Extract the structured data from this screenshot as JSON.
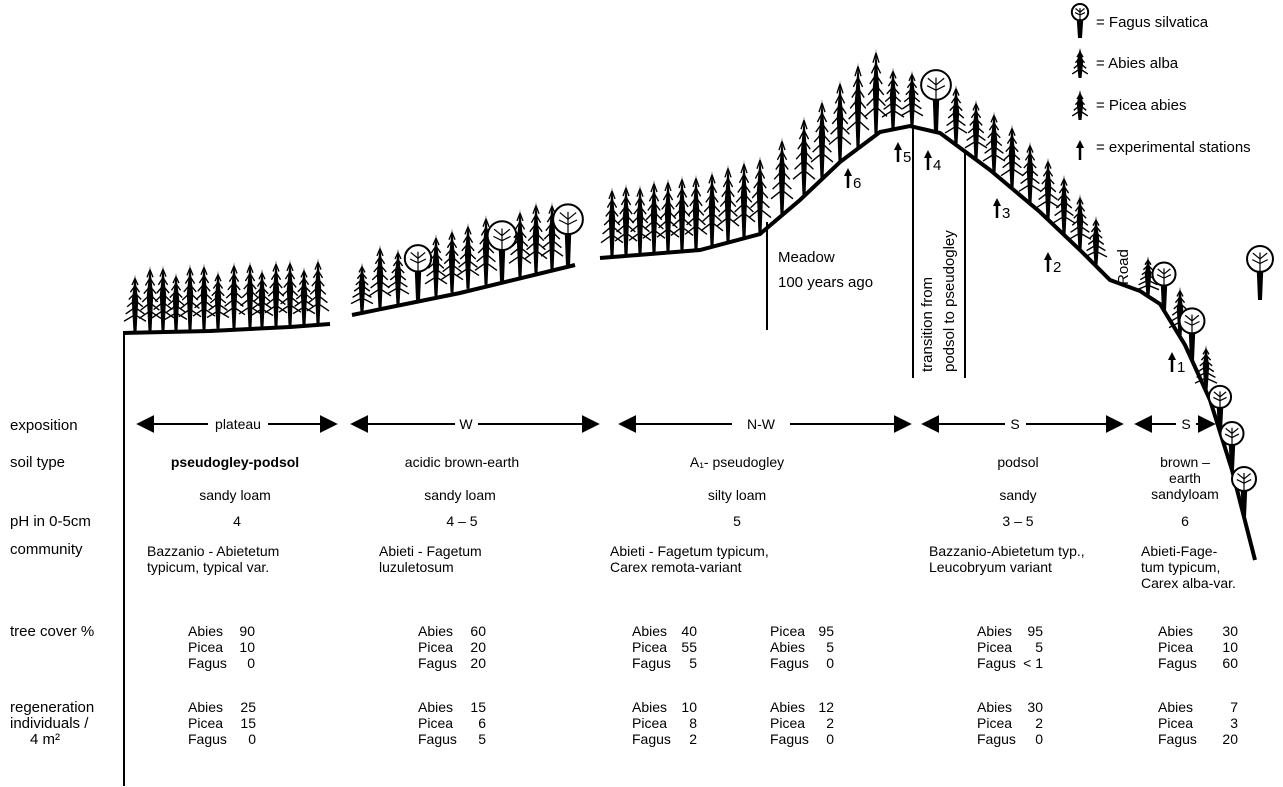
{
  "legend": {
    "fagus": "= Fagus silvatica",
    "abies": "= Abies alba",
    "picea": "= Picea abies",
    "station": "= experimental stations"
  },
  "annotations": {
    "meadow_1": "Meadow",
    "meadow_2": "100 years ago",
    "transition_1": "transition from",
    "transition_2": "podsol to pseudogley",
    "road": "Road"
  },
  "stations": [
    "1",
    "2",
    "3",
    "4",
    "5",
    "6"
  ],
  "row_labels": {
    "exposition": "exposition",
    "soil_type": "soil type",
    "ph": "pH in 0-5cm",
    "community": "community",
    "tree_cover": "tree cover %",
    "regen_1": "regeneration",
    "regen_2": "individuals /",
    "regen_3": "4 m²"
  },
  "sections": [
    {
      "exposition": "plateau",
      "soil_type": "pseudogley-podsol",
      "texture": "sandy loam",
      "ph": "4",
      "community": [
        "Bazzanio - Abietetum",
        "typicum, typical var."
      ],
      "cover": [
        [
          "Abies",
          "90"
        ],
        [
          "Picea",
          "10"
        ],
        [
          "Fagus",
          "0"
        ]
      ],
      "regen": [
        [
          "Abies",
          "25"
        ],
        [
          "Picea",
          "15"
        ],
        [
          "Fagus",
          "0"
        ]
      ]
    },
    {
      "exposition": "W",
      "soil_type": "acidic brown-earth",
      "texture": "sandy loam",
      "ph": "4 – 5",
      "community": [
        "Abieti - Fagetum",
        "luzuletosum"
      ],
      "cover": [
        [
          "Abies",
          "60"
        ],
        [
          "Picea",
          "20"
        ],
        [
          "Fagus",
          "20"
        ]
      ],
      "regen": [
        [
          "Abies",
          "15"
        ],
        [
          "Picea",
          "6"
        ],
        [
          "Fagus",
          "5"
        ]
      ]
    },
    {
      "exposition": "N-W",
      "soil_type": "A₁- pseudogley",
      "texture": "silty loam",
      "ph": "5",
      "community": [
        "Abieti - Fagetum typicum,",
        "Carex remota-variant"
      ],
      "cover": [
        [
          "Abies",
          "40"
        ],
        [
          "Picea",
          "55"
        ],
        [
          "Fagus",
          "5"
        ]
      ],
      "cover_b": [
        [
          "Picea",
          "95"
        ],
        [
          "Abies",
          "5"
        ],
        [
          "Fagus",
          "0"
        ]
      ],
      "regen": [
        [
          "Abies",
          "10"
        ],
        [
          "Picea",
          "8"
        ],
        [
          "Fagus",
          "2"
        ]
      ],
      "regen_b": [
        [
          "Abies",
          "12"
        ],
        [
          "Picea",
          "2"
        ],
        [
          "Fagus",
          "0"
        ]
      ]
    },
    {
      "exposition": "S",
      "soil_type": "podsol",
      "texture": "sandy",
      "ph": "3 – 5",
      "community": [
        "Bazzanio-Abietetum typ.,",
        "Leucobryum variant"
      ],
      "cover": [
        [
          "Abies",
          "95"
        ],
        [
          "Picea",
          "5"
        ],
        [
          "Fagus",
          "< 1"
        ]
      ],
      "regen": [
        [
          "Abies",
          "30"
        ],
        [
          "Picea",
          "2"
        ],
        [
          "Fagus",
          "0"
        ]
      ]
    },
    {
      "exposition": "S",
      "soil_type": [
        "brown –",
        "earth",
        "sandyloam"
      ],
      "ph": "6",
      "community": [
        "Abieti-Fage-",
        "tum typicum,",
        "Carex alba-var."
      ],
      "cover": [
        [
          "Abies",
          "30"
        ],
        [
          "Picea",
          "10"
        ],
        [
          "Fagus",
          "60"
        ]
      ],
      "regen": [
        [
          "Abies",
          "7"
        ],
        [
          "Picea",
          "3"
        ],
        [
          "Fagus",
          "20"
        ]
      ]
    }
  ]
}
